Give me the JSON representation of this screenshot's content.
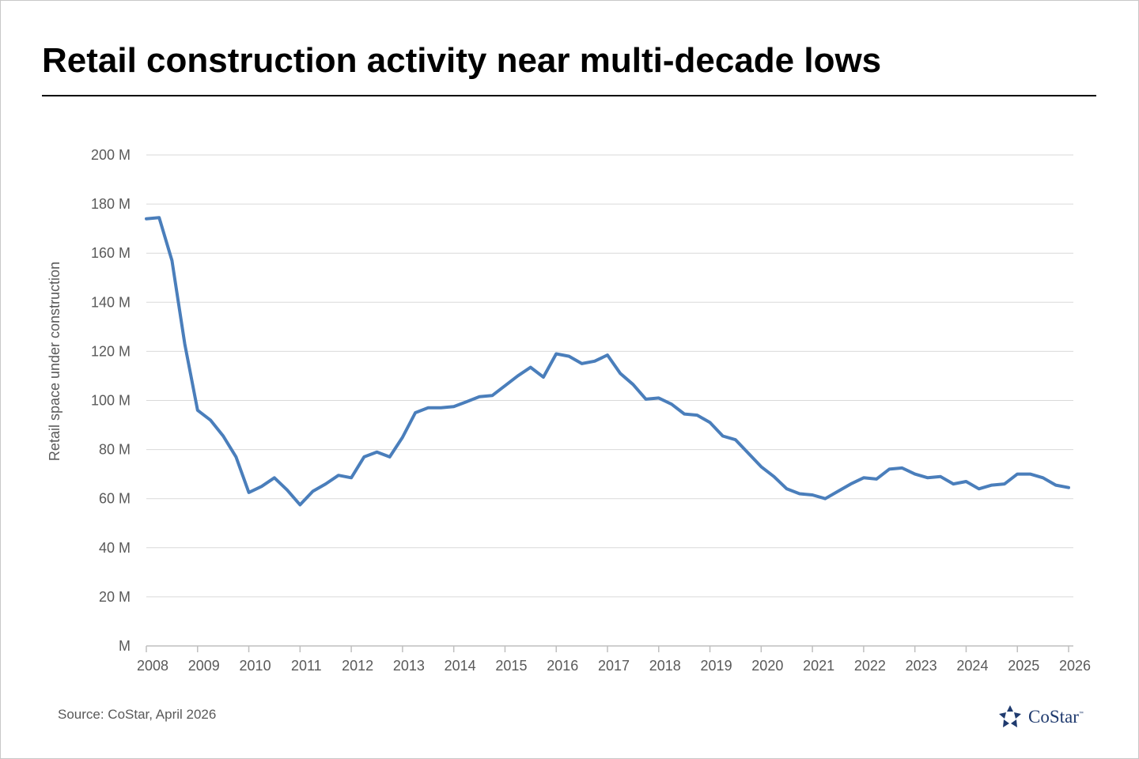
{
  "title": "Retail construction activity near multi-decade lows",
  "source": "Source: CoStar, April 2026",
  "logo": {
    "text": "CoStar",
    "trademark": "™",
    "icon": "costar-star-icon",
    "color": "#1f3a6e"
  },
  "chart_data": {
    "type": "line",
    "title": "Retail construction activity near multi-decade lows",
    "xlabel": "",
    "ylabel": "Retail space under construction",
    "xlim": [
      2008,
      2026
    ],
    "x_ticks": [
      "2008",
      "2009",
      "2010",
      "2011",
      "2012",
      "2013",
      "2014",
      "2015",
      "2016",
      "2017",
      "2018",
      "2019",
      "2020",
      "2021",
      "2022",
      "2023",
      "2024",
      "2025",
      "2026"
    ],
    "ylim": [
      0,
      200
    ],
    "y_ticks": [
      {
        "value": 0,
        "label": "M"
      },
      {
        "value": 20,
        "label": "20 M"
      },
      {
        "value": 40,
        "label": "40 M"
      },
      {
        "value": 60,
        "label": "60 M"
      },
      {
        "value": 80,
        "label": "80 M"
      },
      {
        "value": 100,
        "label": "100 M"
      },
      {
        "value": 120,
        "label": "120 M"
      },
      {
        "value": 140,
        "label": "140 M"
      },
      {
        "value": 160,
        "label": "160 M"
      },
      {
        "value": 180,
        "label": "180 M"
      },
      {
        "value": 200,
        "label": "200 M"
      }
    ],
    "grid": "horizontal",
    "series_color": "#4a7ebb",
    "series": [
      {
        "name": "",
        "points": [
          [
            2008.0,
            174
          ],
          [
            2008.25,
            174.5
          ],
          [
            2008.5,
            157
          ],
          [
            2008.75,
            123
          ],
          [
            2009.0,
            96
          ],
          [
            2009.25,
            92
          ],
          [
            2009.5,
            85.5
          ],
          [
            2009.75,
            77
          ],
          [
            2010.0,
            62.5
          ],
          [
            2010.25,
            65
          ],
          [
            2010.5,
            68.5
          ],
          [
            2010.75,
            63.5
          ],
          [
            2011.0,
            57.5
          ],
          [
            2011.25,
            63
          ],
          [
            2011.5,
            66
          ],
          [
            2011.75,
            69.5
          ],
          [
            2012.0,
            68.5
          ],
          [
            2012.25,
            77
          ],
          [
            2012.5,
            79
          ],
          [
            2012.75,
            77
          ],
          [
            2013.0,
            85
          ],
          [
            2013.25,
            95
          ],
          [
            2013.5,
            97
          ],
          [
            2013.75,
            97
          ],
          [
            2014.0,
            97.5
          ],
          [
            2014.25,
            99.5
          ],
          [
            2014.5,
            101.5
          ],
          [
            2014.75,
            102
          ],
          [
            2015.0,
            106
          ],
          [
            2015.25,
            110
          ],
          [
            2015.5,
            113.5
          ],
          [
            2015.75,
            109.5
          ],
          [
            2016.0,
            119
          ],
          [
            2016.25,
            118
          ],
          [
            2016.5,
            115
          ],
          [
            2016.75,
            116
          ],
          [
            2017.0,
            118.5
          ],
          [
            2017.25,
            111
          ],
          [
            2017.5,
            106.5
          ],
          [
            2017.75,
            100.5
          ],
          [
            2018.0,
            101
          ],
          [
            2018.25,
            98.5
          ],
          [
            2018.5,
            94.5
          ],
          [
            2018.75,
            94
          ],
          [
            2019.0,
            91
          ],
          [
            2019.25,
            85.5
          ],
          [
            2019.5,
            84
          ],
          [
            2019.75,
            78.5
          ],
          [
            2020.0,
            73
          ],
          [
            2020.25,
            69
          ],
          [
            2020.5,
            64
          ],
          [
            2020.75,
            62
          ],
          [
            2021.0,
            61.5
          ],
          [
            2021.25,
            60
          ],
          [
            2021.5,
            63
          ],
          [
            2021.75,
            66
          ],
          [
            2022.0,
            68.5
          ],
          [
            2022.25,
            68
          ],
          [
            2022.5,
            72
          ],
          [
            2022.75,
            72.5
          ],
          [
            2023.0,
            70
          ],
          [
            2023.25,
            68.5
          ],
          [
            2023.5,
            69
          ],
          [
            2023.75,
            66
          ],
          [
            2024.0,
            67
          ],
          [
            2024.25,
            64
          ],
          [
            2024.5,
            65.5
          ],
          [
            2024.75,
            66
          ],
          [
            2025.0,
            70
          ],
          [
            2025.25,
            70
          ],
          [
            2025.5,
            68.5
          ],
          [
            2025.75,
            65.5
          ],
          [
            2026.0,
            64.5
          ]
        ]
      }
    ]
  }
}
